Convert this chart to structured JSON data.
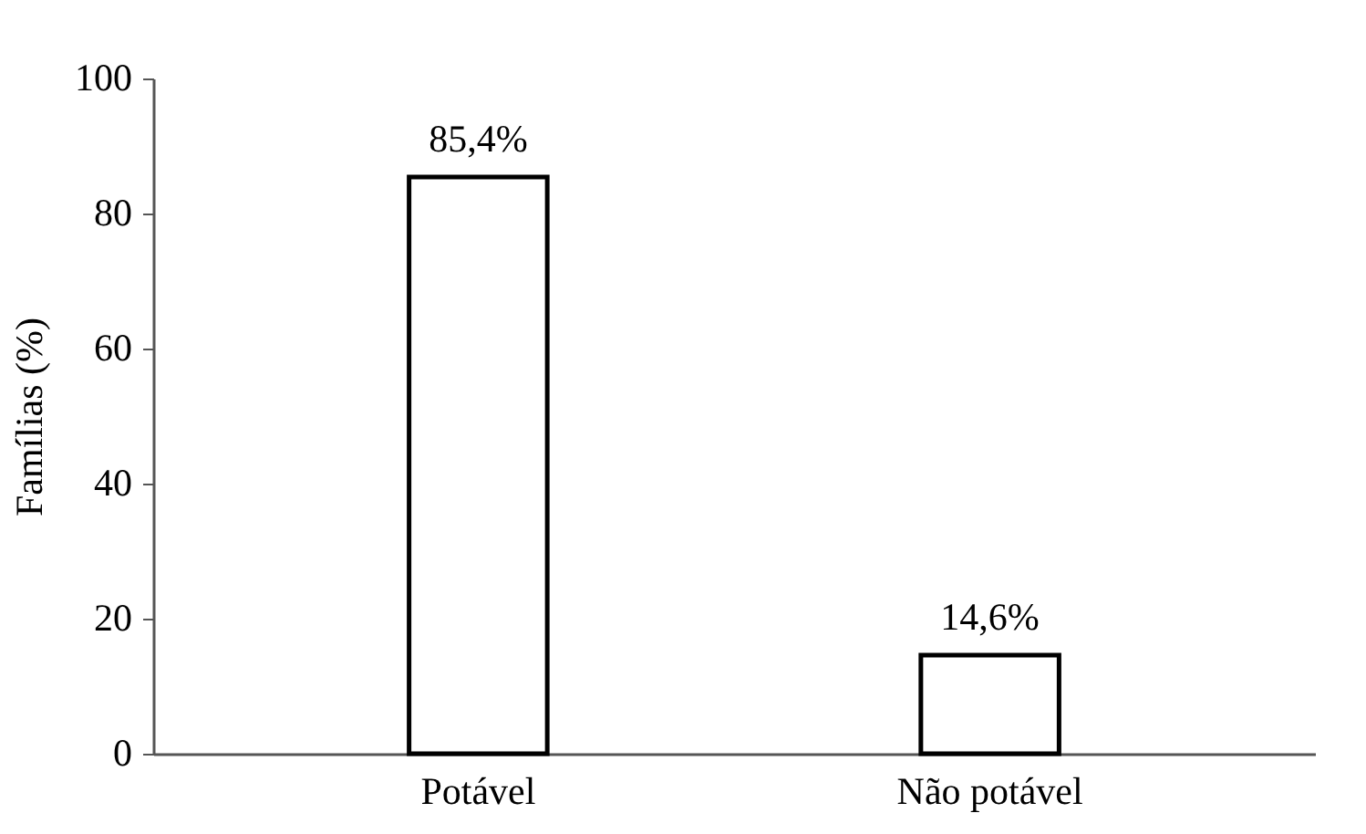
{
  "chart_data": {
    "type": "bar",
    "ylabel": "Famílias (%)",
    "categories": [
      "Potável",
      "Não potável"
    ],
    "values": [
      85.4,
      14.6
    ],
    "value_labels": [
      "85,4%",
      "14,6%"
    ],
    "color": "#ffffff",
    "ylim": [
      0,
      100
    ],
    "yticks": [
      0,
      20,
      40,
      60,
      80,
      100
    ],
    "grid": false
  }
}
